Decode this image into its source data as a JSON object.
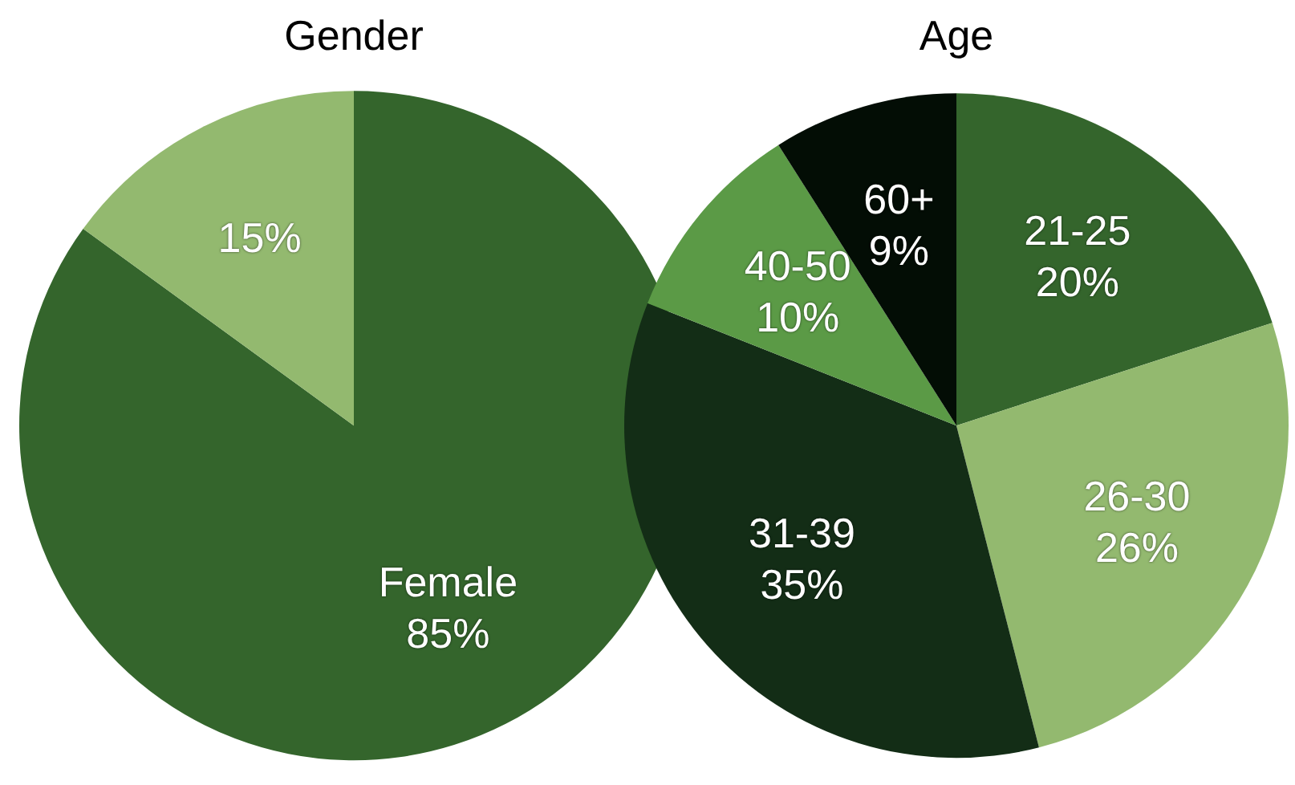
{
  "chart_data": [
    {
      "type": "pie",
      "title": "Gender",
      "categories": [
        "Female",
        null
      ],
      "values": [
        85,
        15
      ],
      "colors": [
        "#34652c",
        "#93b96f"
      ],
      "value_labels": [
        "85%",
        "15%"
      ],
      "legend": false
    },
    {
      "type": "pie",
      "title": "Age",
      "categories": [
        "21-25",
        "26-30",
        "31-39",
        "40-50",
        "60+"
      ],
      "values": [
        20,
        26,
        35,
        10,
        9
      ],
      "colors": [
        "#34652c",
        "#93b96f",
        "#132d16",
        "#5b9a46",
        "#030d05"
      ],
      "value_labels": [
        "20%",
        "26%",
        "35%",
        "10%",
        "9%"
      ],
      "legend": false
    }
  ]
}
